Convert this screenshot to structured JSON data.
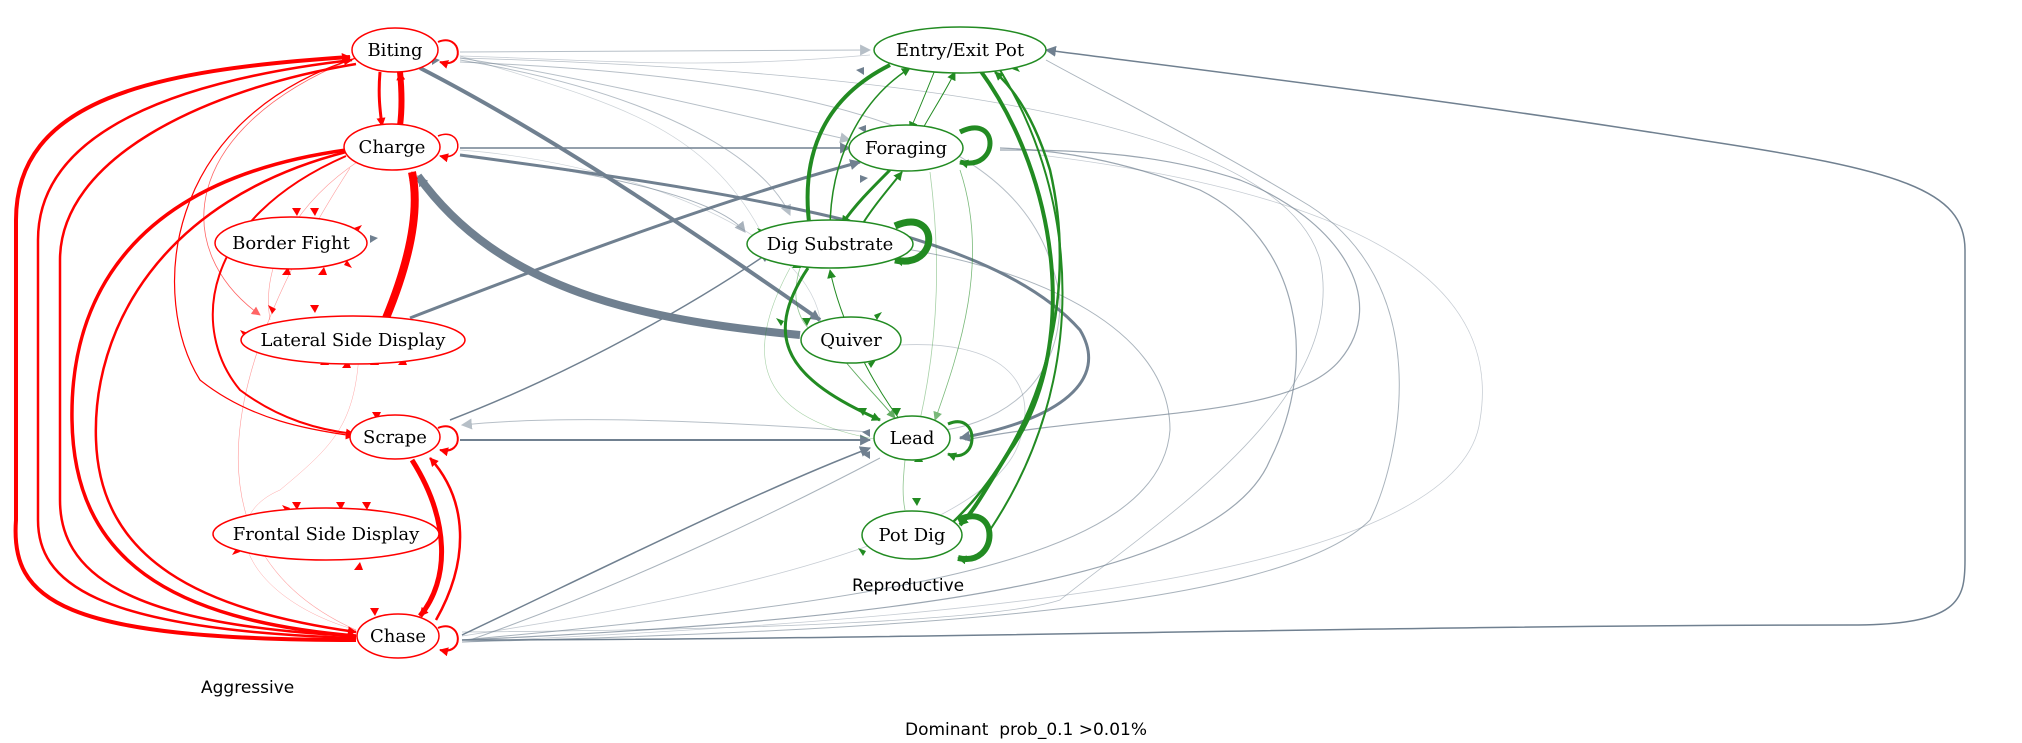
{
  "colors": {
    "aggressive": "#ff0000",
    "reproductive": "#228b22",
    "cross": "#708090",
    "background": "#ffffff"
  },
  "groups": {
    "aggressive_label": "Aggressive",
    "reproductive_label": "Reproductive"
  },
  "footer": {
    "caption": "Dominant  prob_0.1 >0.01%"
  },
  "nodes": {
    "biting": "Biting",
    "charge": "Charge",
    "border_fight": "Border Fight",
    "lateral_side_display": "Lateral Side Display",
    "scrape": "Scrape",
    "frontal_side_display": "Frontal Side Display",
    "chase": "Chase",
    "entry_exit_pot": "Entry/Exit Pot",
    "foraging": "Foraging",
    "dig_substrate": "Dig Substrate",
    "quiver": "Quiver",
    "lead": "Lead",
    "pot_dig": "Pot Dig"
  }
}
